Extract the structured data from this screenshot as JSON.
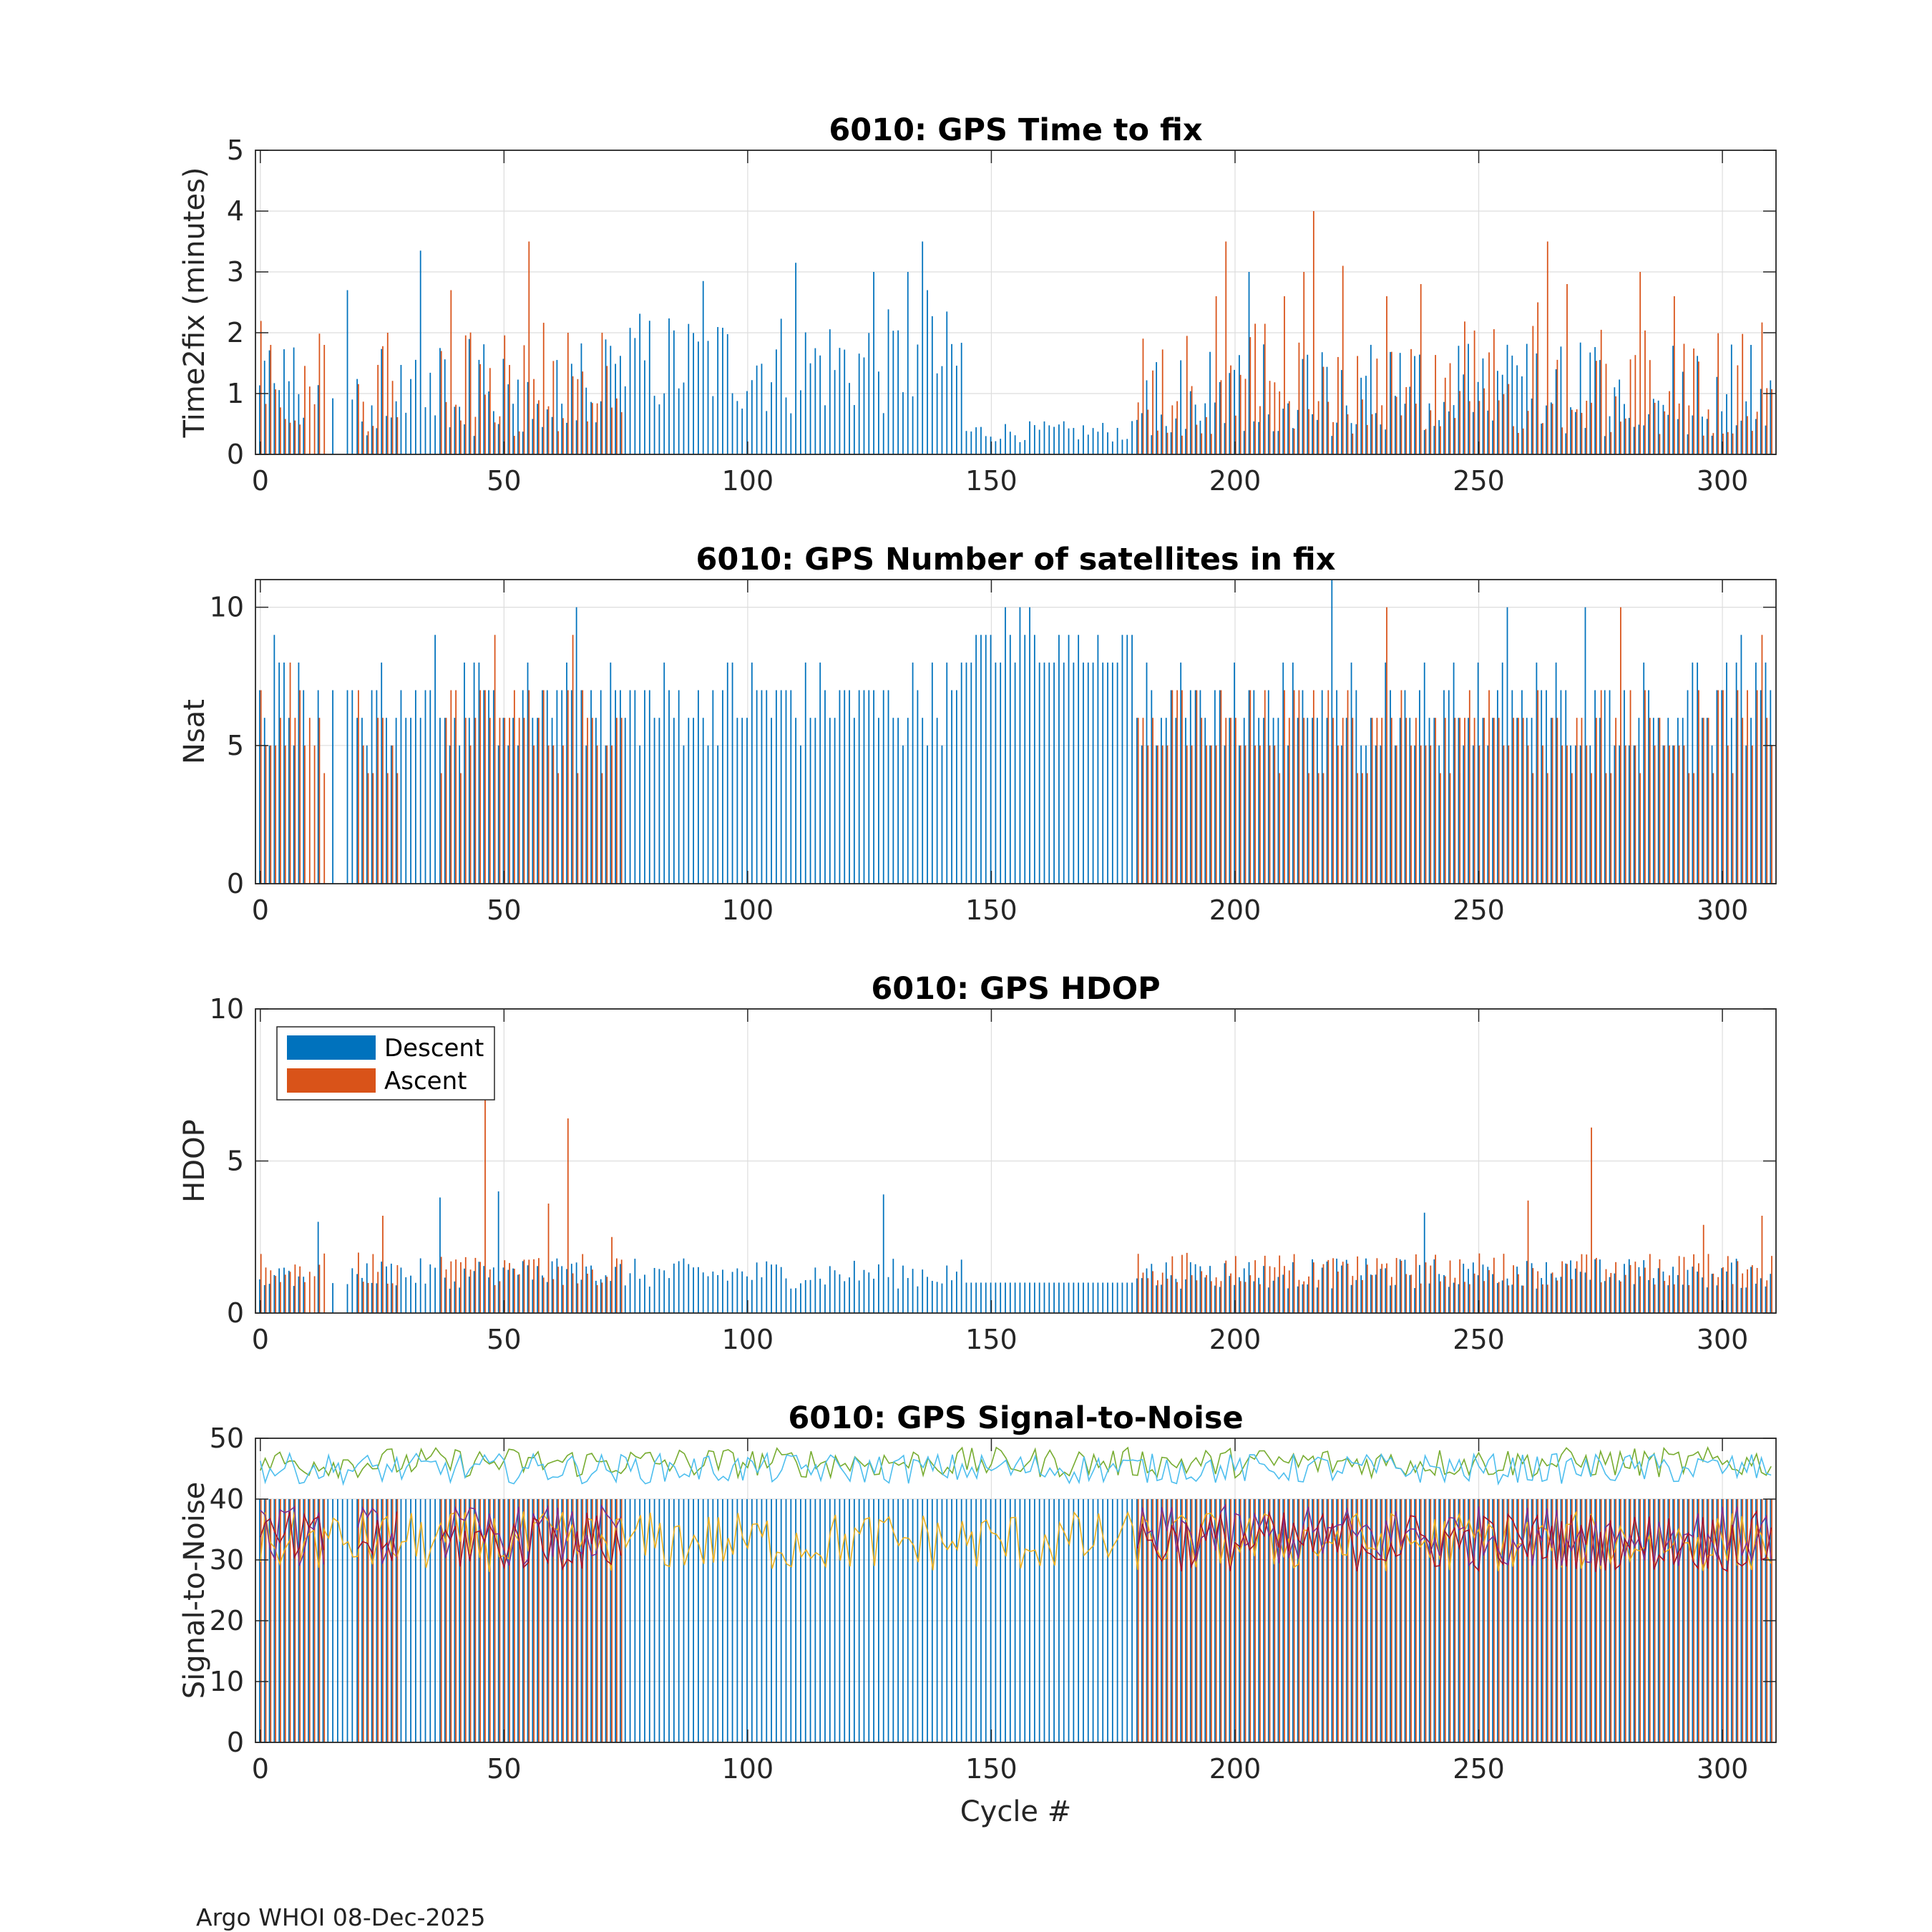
{
  "footer": "Argo WHOI 08-Dec-2025",
  "colors": {
    "descent": "#0072BD",
    "ascent": "#D95319",
    "snr_lines": [
      "#77AC30",
      "#4DBEEE",
      "#EDB120",
      "#7E2F8E",
      "#A2142F"
    ],
    "grid": "#dddddd",
    "axis": "#262626"
  },
  "legend": {
    "entries": [
      "Descent",
      "Ascent"
    ],
    "location": "top-left"
  },
  "chart_data": [
    {
      "type": "bar",
      "title": "6010: GPS Time to fix",
      "xlabel": "",
      "ylabel": "Time2fix (minutes)",
      "xlim": [
        -1,
        311
      ],
      "ylim": [
        0,
        5
      ],
      "xticks": [
        0,
        50,
        100,
        150,
        200,
        250,
        300
      ],
      "yticks": [
        0,
        1,
        2,
        3,
        4,
        5
      ],
      "grid": true,
      "series": [
        {
          "name": "Descent",
          "highlights": [
            [
              18,
              2.7
            ],
            [
              33,
              3.35
            ],
            [
              91,
              2.85
            ],
            [
              110,
              3.15
            ],
            [
              126,
              3.0
            ],
            [
              133,
              3.0
            ],
            [
              136,
              3.5
            ],
            [
              137,
              2.7
            ],
            [
              203,
              3.0
            ],
            [
              306,
              1.8
            ]
          ]
        },
        {
          "name": "Ascent",
          "highlights": [
            [
              2,
              1.8
            ],
            [
              13,
              1.8
            ],
            [
              26,
              2.0
            ],
            [
              37,
              1.7
            ],
            [
              39,
              2.7
            ],
            [
              55,
              3.5
            ],
            [
              63,
              2.0
            ],
            [
              70,
              2.0
            ],
            [
              196,
              2.6
            ],
            [
              198,
              3.5
            ],
            [
              210,
              2.6
            ],
            [
              214,
              3.0
            ],
            [
              216,
              4.0
            ],
            [
              222,
              3.1
            ],
            [
              231,
              2.6
            ],
            [
              238,
              2.8
            ],
            [
              262,
              2.5
            ],
            [
              264,
              3.5
            ],
            [
              268,
              2.8
            ],
            [
              283,
              3.0
            ],
            [
              290,
              2.6
            ]
          ]
        }
      ]
    },
    {
      "type": "bar",
      "title": "6010: GPS Number of satellites in fix",
      "xlabel": "",
      "ylabel": "Nsat",
      "xlim": [
        -1,
        311
      ],
      "ylim": [
        0,
        11
      ],
      "xticks": [
        0,
        50,
        100,
        150,
        200,
        250,
        300
      ],
      "yticks": [
        0,
        5,
        10
      ],
      "grid": true,
      "series": [
        {
          "name": "Descent",
          "highlights": [
            [
              3,
              9
            ],
            [
              36,
              9
            ],
            [
              65,
              10
            ],
            [
              153,
              10
            ],
            [
              156,
              10
            ],
            [
              158,
              10
            ],
            [
              220,
              11
            ],
            [
              256,
              10
            ],
            [
              272,
              10
            ],
            [
              304,
              9
            ]
          ]
        },
        {
          "name": "Ascent",
          "highlights": [
            [
              6,
              8
            ],
            [
              48,
              9
            ],
            [
              64,
              9
            ],
            [
              231,
              10
            ],
            [
              279,
              10
            ],
            [
              308,
              9
            ]
          ]
        }
      ]
    },
    {
      "type": "bar",
      "title": "6010: GPS HDOP",
      "xlabel": "",
      "ylabel": "HDOP",
      "xlim": [
        -1,
        311
      ],
      "ylim": [
        0,
        10
      ],
      "xticks": [
        0,
        50,
        100,
        150,
        200,
        250,
        300
      ],
      "yticks": [
        0,
        5,
        10
      ],
      "grid": true,
      "series": [
        {
          "name": "Descent",
          "highlights": [
            [
              12,
              3.0
            ],
            [
              37,
              3.8
            ],
            [
              49,
              4.0
            ],
            [
              128,
              3.9
            ],
            [
              239,
              3.3
            ]
          ]
        },
        {
          "name": "Ascent",
          "highlights": [
            [
              25,
              3.2
            ],
            [
              46,
              7.0
            ],
            [
              59,
              3.6
            ],
            [
              63,
              6.4
            ],
            [
              72,
              2.5
            ],
            [
              260,
              3.7
            ],
            [
              273,
              6.1
            ],
            [
              296,
              2.9
            ],
            [
              308,
              3.2
            ]
          ]
        }
      ]
    },
    {
      "type": "bar",
      "title": "6010: GPS Signal-to-Noise",
      "xlabel": "Cycle #",
      "ylabel": "Signal-to-Noise",
      "xlim": [
        -1,
        311
      ],
      "ylim": [
        0,
        50
      ],
      "xticks": [
        0,
        50,
        100,
        150,
        200,
        250,
        300
      ],
      "yticks": [
        0,
        10,
        20,
        30,
        40,
        50
      ],
      "grid": true,
      "series": [
        {
          "name": "Descent",
          "base_level": 40
        },
        {
          "name": "Ascent",
          "base_level": 40
        }
      ],
      "line_series_levels": [
        46,
        45,
        33,
        34,
        33
      ]
    }
  ]
}
